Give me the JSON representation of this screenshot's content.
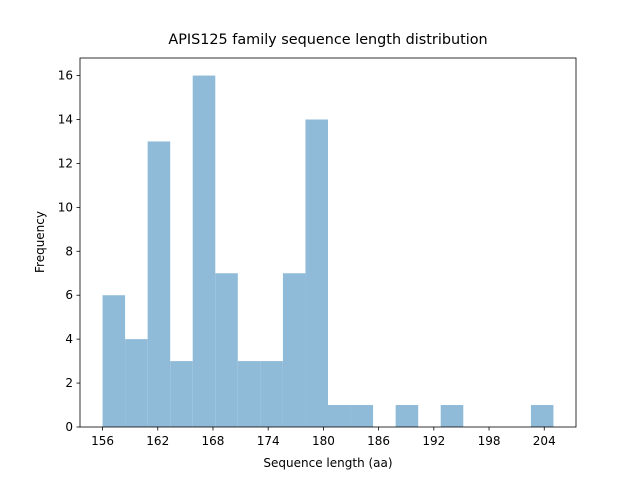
{
  "chart_data": {
    "type": "histogram",
    "title": "APIS125 family sequence length distribution",
    "x_label": "Sequence length (aa)",
    "y_label": "Frequency",
    "bins": [
      156,
      158.45,
      160.9,
      163.35,
      165.8,
      168.25,
      170.7,
      173.15,
      175.6,
      178.05,
      180.5,
      182.95,
      185.4,
      187.85,
      190.3,
      192.75,
      195.2,
      197.65,
      200.1,
      202.55,
      205
    ],
    "counts": [
      6,
      4,
      13,
      3,
      16,
      7,
      3,
      3,
      7,
      14,
      1,
      1,
      0,
      1,
      0,
      1,
      0,
      0,
      0,
      1
    ],
    "color": "#8fbbd9",
    "xlim": [
      153.55,
      207.45
    ],
    "xticks": [
      156,
      162,
      168,
      174,
      180,
      186,
      192,
      198,
      204
    ],
    "ylim": [
      0,
      16.8
    ],
    "yticks": [
      0,
      2,
      4,
      6,
      8,
      10,
      12,
      14,
      16
    ],
    "grid": false
  }
}
